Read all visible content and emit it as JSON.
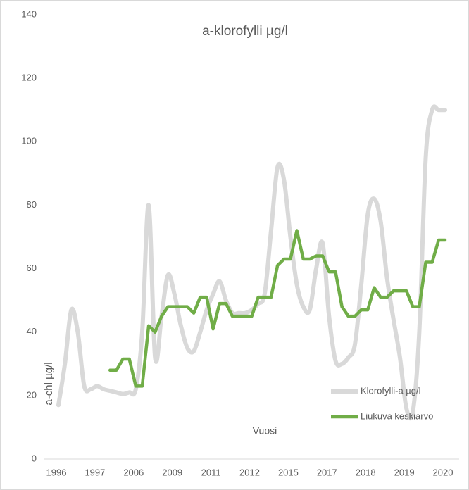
{
  "chart_data": {
    "type": "line",
    "title": "a-klorofylli  µg/l",
    "x_label": "Vuosi",
    "y_label": "a-chl µg/l",
    "categories": [
      "1996",
      null,
      null,
      null,
      null,
      null,
      "1997",
      null,
      null,
      null,
      null,
      null,
      "2006",
      null,
      null,
      null,
      null,
      null,
      "2009",
      null,
      null,
      null,
      null,
      null,
      "2011",
      null,
      null,
      null,
      null,
      null,
      "2012",
      null,
      null,
      null,
      null,
      null,
      "2015",
      null,
      null,
      null,
      null,
      null,
      "2017",
      null,
      null,
      null,
      null,
      null,
      "2018",
      null,
      null,
      null,
      null,
      null,
      "2019",
      null,
      null,
      null,
      null,
      null,
      "2020"
    ],
    "series": [
      {
        "name": "Klorofylli-a µg/l",
        "color": "#d9d9d9",
        "smooth": true,
        "values": [
          17,
          30,
          47,
          40,
          23,
          22,
          23,
          22,
          21.5,
          21,
          20.5,
          21,
          22,
          40,
          80,
          32,
          45,
          58,
          52,
          42,
          35,
          34,
          40,
          47,
          52,
          56,
          50,
          46,
          46,
          46,
          47,
          49,
          52,
          72,
          92,
          88,
          70,
          55,
          48,
          47,
          60,
          68,
          45,
          31,
          30,
          32,
          36,
          55,
          77,
          82,
          75,
          57,
          44,
          32,
          16,
          15,
          40,
          95,
          110,
          110,
          110
        ]
      },
      {
        "name": "Liukuva keskiarvo",
        "color": "#70ad47",
        "smooth": false,
        "values": [
          null,
          null,
          null,
          null,
          null,
          null,
          null,
          null,
          28,
          28,
          31.5,
          31.5,
          23,
          23,
          42,
          40,
          45,
          48,
          48,
          48,
          48,
          46,
          51,
          51,
          41,
          49,
          49,
          45,
          45,
          45,
          45,
          51,
          51,
          51,
          61,
          63,
          63,
          72,
          63,
          63,
          64,
          64,
          59,
          59,
          48,
          45,
          45,
          47,
          47,
          54,
          51,
          51,
          53,
          53,
          53,
          48,
          48,
          62,
          62,
          69,
          69
        ]
      }
    ],
    "ylim": [
      0,
      140
    ],
    "yticks": [
      0,
      20,
      40,
      60,
      80,
      100,
      120,
      140
    ],
    "grid": false,
    "legend": "lower-right"
  }
}
